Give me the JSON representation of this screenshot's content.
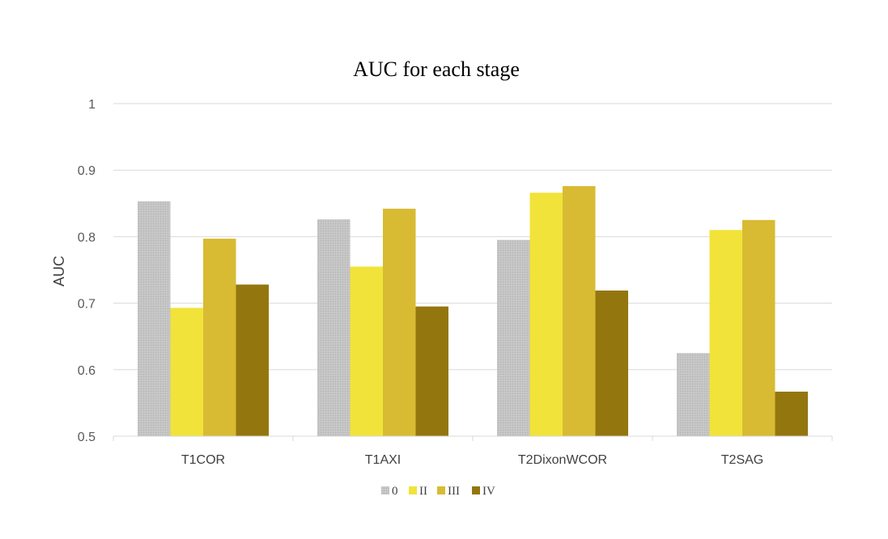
{
  "chart_data": {
    "type": "bar",
    "title": "AUC for each stage",
    "xlabel": "",
    "ylabel": "AUC",
    "ylim": [
      0.5,
      1
    ],
    "yticks": [
      "0.5",
      "0.6",
      "0.7",
      "0.8",
      "0.9",
      "1"
    ],
    "grid": true,
    "legend_position": "bottom",
    "categories": [
      "T1COR",
      "T1AXI",
      "T2DixonWCOR",
      "T2SAG"
    ],
    "series": [
      {
        "name": "0",
        "color": "#c0c0c0",
        "pattern": "dotted",
        "values": [
          0.853,
          0.826,
          0.795,
          0.625
        ]
      },
      {
        "name": "II",
        "color": "#f1e33a",
        "values": [
          0.693,
          0.755,
          0.866,
          0.81
        ]
      },
      {
        "name": "III",
        "color": "#d8bb33",
        "values": [
          0.797,
          0.842,
          0.876,
          0.825
        ]
      },
      {
        "name": "IV",
        "color": "#94760f",
        "values": [
          0.728,
          0.695,
          0.719,
          0.567
        ]
      }
    ]
  }
}
